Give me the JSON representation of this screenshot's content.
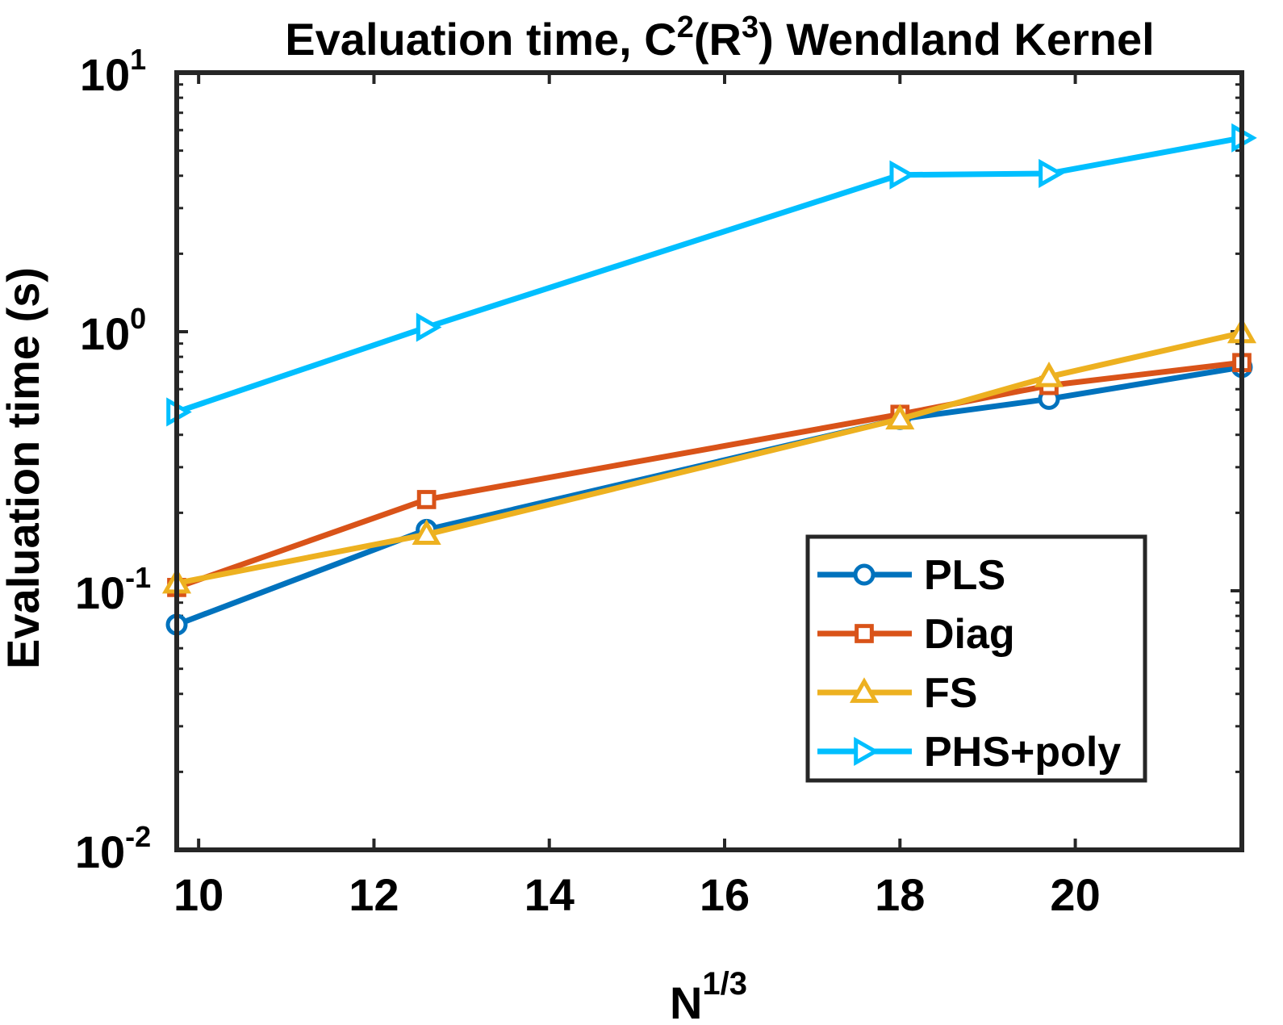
{
  "chart_data": {
    "type": "line",
    "title": {
      "prefix": "Evaluation time, C",
      "sup1": "2",
      "mid": "(R",
      "sup2": "3",
      "suffix": ") Wendland Kernel"
    },
    "xlabel": {
      "base": "N",
      "sup": "1/3"
    },
    "ylabel": "Evaluation time (s)",
    "xscale": "linear",
    "yscale": "log",
    "xlim": [
      9.75,
      21.9
    ],
    "ylim": [
      0.01,
      10
    ],
    "x_ticks": [
      10,
      12,
      14,
      16,
      18,
      20
    ],
    "y_ticks": [
      {
        "value": 0.01,
        "base": "10",
        "exp": "-2"
      },
      {
        "value": 0.1,
        "base": "10",
        "exp": "-1"
      },
      {
        "value": 1,
        "base": "10",
        "exp": "0"
      },
      {
        "value": 10,
        "base": "10",
        "exp": "1"
      }
    ],
    "grid": false,
    "legend_position": "bottom-right",
    "series": [
      {
        "name": "PLS",
        "color": "#0072BD",
        "marker": "circle",
        "x": [
          9.75,
          12.6,
          18.0,
          19.7,
          21.9
        ],
        "y": [
          0.074,
          0.172,
          0.46,
          0.55,
          0.73
        ]
      },
      {
        "name": "Diag",
        "color": "#D95319",
        "marker": "square",
        "x": [
          9.75,
          12.6,
          18.0,
          19.7,
          21.9
        ],
        "y": [
          0.103,
          0.225,
          0.48,
          0.62,
          0.76
        ]
      },
      {
        "name": "FS",
        "color": "#EDB120",
        "marker": "triangle-up",
        "x": [
          9.75,
          12.6,
          18.0,
          19.7,
          21.9
        ],
        "y": [
          0.107,
          0.165,
          0.46,
          0.67,
          0.99
        ]
      },
      {
        "name": "PHS+poly",
        "color": "#00BFFF",
        "marker": "triangle-right",
        "x": [
          9.75,
          12.6,
          18.0,
          19.7,
          21.9
        ],
        "y": [
          0.49,
          1.04,
          4.03,
          4.08,
          5.6
        ]
      }
    ]
  }
}
